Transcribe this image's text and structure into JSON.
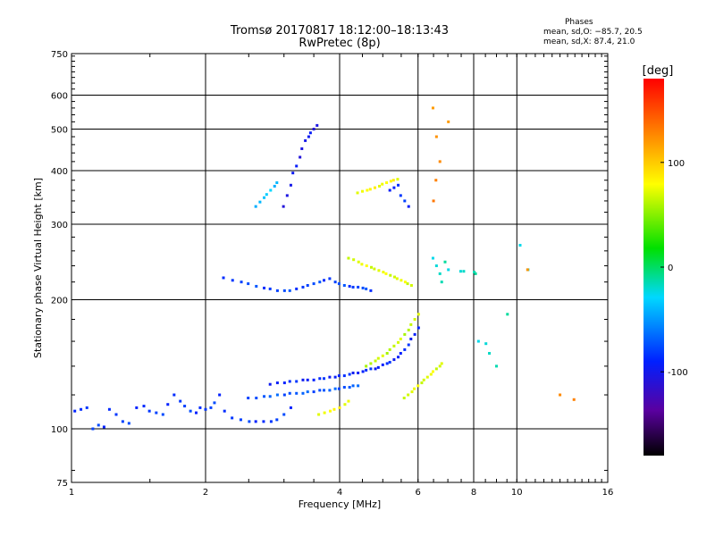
{
  "chart_data": {
    "type": "scatter",
    "title": "Tromsø 20170817 18:12:00–18:13:43",
    "subtitle": "RwPretec (8p)",
    "xlabel": "Frequency [MHz]",
    "ylabel": "Stationary phase Virtual Height [km]",
    "x_scale": "log",
    "y_scale": "log",
    "xlim": [
      1,
      16
    ],
    "ylim": [
      75,
      750
    ],
    "x_ticks": [
      1,
      2,
      4,
      6,
      8,
      10,
      16
    ],
    "y_ticks": [
      75,
      100,
      200,
      300,
      400,
      500,
      600,
      750
    ],
    "grid": true,
    "phase_info": {
      "title": "Phases",
      "line_o": "mean, sd,O: −85.7, 20.5",
      "line_x": "mean, sd,X:  87.4, 21.0"
    },
    "colorbar": {
      "label": "[deg]",
      "ticks": [
        100,
        0,
        -100
      ],
      "range": [
        -180,
        180
      ],
      "colormap": "rainbow"
    },
    "series": [
      {
        "x": [
          1.02,
          1.05,
          1.08,
          1.12,
          1.15,
          1.18,
          1.22,
          1.26,
          1.3,
          1.35,
          1.4,
          1.45,
          1.5,
          1.55,
          1.6,
          1.65,
          1.7,
          1.75,
          1.8,
          1.85,
          1.9,
          1.95,
          2.0,
          2.05,
          2.1,
          2.15,
          2.2,
          2.3,
          2.4,
          2.5,
          2.6,
          2.7,
          2.8,
          2.9,
          3.0,
          3.1
        ],
        "y": [
          110,
          111,
          112,
          100,
          102,
          101,
          111,
          108,
          104,
          103,
          112,
          113,
          110,
          109,
          108,
          114,
          120,
          116,
          113,
          110,
          109,
          112,
          111,
          112,
          115,
          120,
          110,
          106,
          105,
          104,
          104,
          104,
          104,
          105,
          108,
          112
        ]
      },
      {
        "x": [
          2.8,
          2.9,
          3.0,
          3.1,
          3.2,
          3.3,
          3.4,
          3.5,
          3.6,
          3.7,
          3.8,
          3.9,
          4.0,
          4.1,
          4.2,
          4.3,
          4.4,
          4.5,
          4.6,
          4.7,
          4.8,
          4.9,
          5.0,
          5.1,
          5.2,
          5.3,
          5.4,
          5.5,
          5.6,
          5.7,
          5.8,
          5.9,
          6.0
        ],
        "y": [
          127,
          128,
          128,
          129,
          129,
          130,
          130,
          130,
          131,
          131,
          132,
          132,
          133,
          133,
          134,
          135,
          135,
          136,
          137,
          138,
          138,
          139,
          141,
          142,
          143,
          145,
          147,
          150,
          153,
          157,
          162,
          166,
          172
        ]
      },
      {
        "x": [
          2.5,
          2.6,
          2.7,
          2.8,
          2.9,
          3.0,
          3.1,
          3.2,
          3.3,
          3.4,
          3.5,
          3.6,
          3.7,
          3.8,
          3.9,
          4.0,
          4.1,
          4.2,
          4.3,
          4.4
        ],
        "y": [
          118,
          118,
          119,
          119,
          120,
          120,
          121,
          121,
          121,
          122,
          122,
          123,
          123,
          123,
          124,
          124,
          125,
          125,
          126,
          126
        ]
      },
      {
        "x": [
          3.0,
          3.05,
          3.1,
          3.15,
          3.2,
          3.25,
          3.3,
          3.35,
          3.4,
          3.45,
          3.5,
          3.55
        ],
        "y": [
          330,
          350,
          370,
          395,
          410,
          430,
          450,
          470,
          480,
          490,
          500,
          510
        ]
      },
      {
        "x": [
          2.6,
          2.65,
          2.7,
          2.75,
          2.8,
          2.85,
          2.9
        ],
        "y": [
          330,
          338,
          346,
          352,
          360,
          368,
          375
        ]
      },
      {
        "x": [
          2.2,
          2.3,
          2.4,
          2.5,
          2.6,
          2.7,
          2.8,
          2.9,
          3.0,
          3.1,
          3.2,
          3.3,
          3.4,
          3.5,
          3.6,
          3.7,
          3.8,
          3.9,
          4.0,
          4.1,
          4.2,
          4.3,
          4.4,
          4.5,
          4.6,
          4.7
        ],
        "y": [
          225,
          222,
          220,
          218,
          215,
          213,
          212,
          210,
          210,
          210,
          212,
          214,
          216,
          218,
          220,
          222,
          224,
          220,
          218,
          216,
          215,
          214,
          214,
          213,
          212,
          210
        ]
      },
      {
        "x": [
          4.2,
          4.3,
          4.4,
          4.5,
          4.6,
          4.7,
          4.8,
          4.9,
          5.0,
          5.1,
          5.2,
          5.3,
          5.4,
          5.5,
          5.6,
          5.7,
          5.8
        ],
        "y": [
          250,
          248,
          245,
          242,
          240,
          238,
          236,
          234,
          232,
          230,
          228,
          226,
          224,
          222,
          220,
          218,
          216
        ]
      },
      {
        "x": [
          4.4,
          4.5,
          4.6,
          4.7,
          4.8,
          4.9,
          5.0,
          5.1,
          5.2,
          5.3,
          5.4
        ],
        "y": [
          355,
          358,
          360,
          362,
          365,
          368,
          372,
          375,
          378,
          380,
          382
        ]
      },
      {
        "x": [
          5.2,
          5.3,
          5.4,
          5.5,
          5.6,
          5.7
        ],
        "y": [
          360,
          365,
          370,
          350,
          340,
          330
        ]
      },
      {
        "x": [
          5.6,
          5.7,
          5.8,
          5.9,
          6.0,
          6.1,
          6.2,
          6.3,
          6.4,
          6.5,
          6.6,
          6.7,
          6.8
        ],
        "y": [
          118,
          120,
          122,
          124,
          126,
          128,
          130,
          132,
          134,
          136,
          138,
          140,
          142
        ]
      },
      {
        "x": [
          4.6,
          4.7,
          4.8,
          4.9,
          5.0,
          5.1,
          5.2,
          5.3,
          5.4,
          5.5,
          5.6,
          5.7,
          5.8,
          5.9,
          6.0
        ],
        "y": [
          140,
          142,
          144,
          146,
          148,
          150,
          153,
          156,
          159,
          162,
          166,
          170,
          175,
          180,
          185
        ]
      },
      {
        "x": [
          3.6,
          3.7,
          3.8,
          3.9,
          4.0,
          4.1,
          4.2
        ],
        "y": [
          108,
          109,
          110,
          111,
          112,
          114,
          116
        ]
      },
      {
        "x": [
          6.5,
          6.6,
          6.7,
          6.8,
          6.9,
          7.0,
          7.5,
          7.6,
          8.0,
          8.1,
          8.2,
          8.5,
          8.7,
          9.0,
          9.5,
          10.2,
          10.6
        ],
        "y": [
          250,
          240,
          230,
          220,
          245,
          235,
          233,
          233,
          232,
          230,
          160,
          158,
          150,
          140,
          185,
          268,
          235
        ]
      },
      {
        "x": [
          6.5,
          6.6,
          6.7,
          6.6,
          6.5,
          7.0,
          10.6,
          12.5,
          13.4
        ],
        "y": [
          560,
          480,
          420,
          380,
          340,
          520,
          235,
          120,
          117
        ]
      }
    ]
  }
}
